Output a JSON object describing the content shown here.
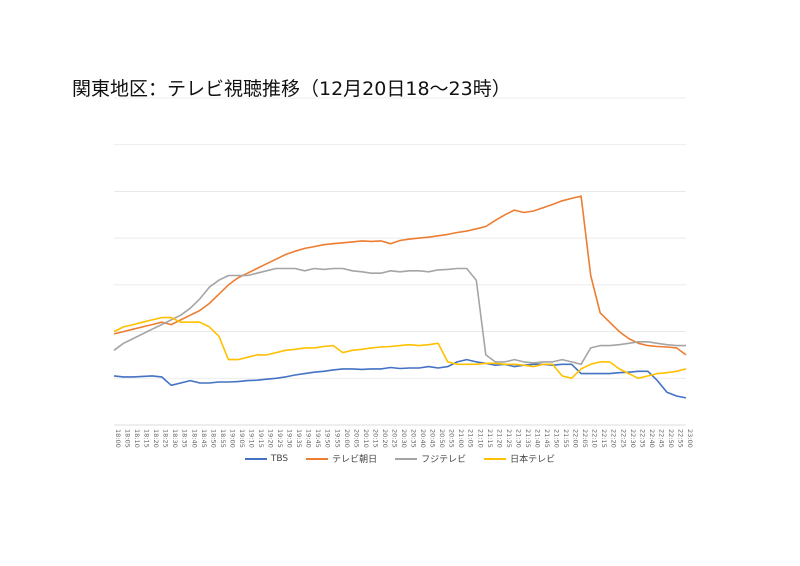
{
  "chart_data": {
    "type": "line",
    "title": "関東地区：テレビ視聴推移（12月20日18〜23時）",
    "xlabel": "",
    "ylabel": "",
    "grid": true,
    "legend_position": "bottom",
    "ylim": [
      0,
      7
    ],
    "x": [
      "18:00",
      "18:05",
      "18:10",
      "18:15",
      "18:20",
      "18:25",
      "18:30",
      "18:35",
      "18:40",
      "18:45",
      "18:50",
      "18:55",
      "19:00",
      "19:05",
      "19:10",
      "19:15",
      "19:20",
      "19:25",
      "19:30",
      "19:35",
      "19:40",
      "19:45",
      "19:50",
      "19:55",
      "20:00",
      "20:05",
      "20:10",
      "20:15",
      "20:20",
      "20:25",
      "20:30",
      "20:35",
      "20:40",
      "20:45",
      "20:50",
      "20:55",
      "21:00",
      "21:05",
      "21:10",
      "21:15",
      "21:20",
      "21:25",
      "21:30",
      "21:35",
      "21:40",
      "21:45",
      "21:50",
      "21:55",
      "22:00",
      "22:05",
      "22:10",
      "22:15",
      "22:20",
      "22:25",
      "22:30",
      "22:35",
      "22:40",
      "22:45",
      "22:50",
      "22:55",
      "23:00"
    ],
    "series": [
      {
        "name": "TBS",
        "color": "#4472C4",
        "values": [
          1.05,
          1.03,
          1.03,
          1.04,
          1.05,
          1.03,
          0.85,
          0.9,
          0.95,
          0.9,
          0.9,
          0.92,
          0.92,
          0.93,
          0.95,
          0.96,
          0.98,
          1.0,
          1.03,
          1.07,
          1.1,
          1.13,
          1.15,
          1.18,
          1.2,
          1.2,
          1.19,
          1.2,
          1.2,
          1.23,
          1.21,
          1.22,
          1.22,
          1.25,
          1.22,
          1.25,
          1.35,
          1.4,
          1.35,
          1.32,
          1.28,
          1.3,
          1.25,
          1.28,
          1.3,
          1.3,
          1.28,
          1.3,
          1.3,
          1.1,
          1.1,
          1.1,
          1.1,
          1.12,
          1.13,
          1.15,
          1.15,
          0.95,
          0.7,
          0.62,
          0.58
        ]
      },
      {
        "name": "テレビ朝日",
        "color": "#ED7D31",
        "values": [
          1.95,
          2.0,
          2.05,
          2.1,
          2.15,
          2.2,
          2.15,
          2.25,
          2.35,
          2.45,
          2.6,
          2.8,
          3.0,
          3.15,
          3.25,
          3.35,
          3.45,
          3.55,
          3.65,
          3.72,
          3.78,
          3.82,
          3.86,
          3.88,
          3.9,
          3.92,
          3.94,
          3.93,
          3.94,
          3.88,
          3.95,
          3.98,
          4.0,
          4.02,
          4.05,
          4.08,
          4.12,
          4.15,
          4.2,
          4.25,
          4.38,
          4.5,
          4.6,
          4.55,
          4.58,
          4.65,
          4.72,
          4.8,
          4.85,
          4.9,
          3.2,
          2.4,
          2.2,
          2.0,
          1.85,
          1.75,
          1.7,
          1.68,
          1.67,
          1.65,
          1.5
        ]
      },
      {
        "name": "フジテレビ",
        "color": "#A5A5A5",
        "values": [
          1.6,
          1.75,
          1.85,
          1.95,
          2.05,
          2.15,
          2.25,
          2.35,
          2.5,
          2.7,
          2.95,
          3.1,
          3.2,
          3.2,
          3.2,
          3.25,
          3.3,
          3.35,
          3.35,
          3.35,
          3.3,
          3.35,
          3.33,
          3.35,
          3.35,
          3.3,
          3.28,
          3.25,
          3.25,
          3.3,
          3.28,
          3.3,
          3.3,
          3.28,
          3.32,
          3.33,
          3.35,
          3.35,
          3.1,
          1.5,
          1.35,
          1.35,
          1.4,
          1.35,
          1.33,
          1.35,
          1.35,
          1.4,
          1.35,
          1.3,
          1.65,
          1.7,
          1.7,
          1.72,
          1.75,
          1.78,
          1.78,
          1.75,
          1.72,
          1.7,
          1.7
        ]
      },
      {
        "name": "日本テレビ",
        "color": "#FFC000",
        "values": [
          2.0,
          2.1,
          2.15,
          2.2,
          2.25,
          2.3,
          2.3,
          2.2,
          2.2,
          2.2,
          2.1,
          1.9,
          1.4,
          1.4,
          1.45,
          1.5,
          1.5,
          1.55,
          1.6,
          1.62,
          1.65,
          1.65,
          1.68,
          1.7,
          1.55,
          1.6,
          1.62,
          1.65,
          1.67,
          1.68,
          1.7,
          1.72,
          1.7,
          1.72,
          1.75,
          1.35,
          1.3,
          1.3,
          1.3,
          1.32,
          1.32,
          1.3,
          1.3,
          1.28,
          1.25,
          1.3,
          1.3,
          1.05,
          1.0,
          1.2,
          1.3,
          1.35,
          1.35,
          1.2,
          1.1,
          1.0,
          1.05,
          1.1,
          1.12,
          1.15,
          1.2
        ]
      }
    ]
  }
}
